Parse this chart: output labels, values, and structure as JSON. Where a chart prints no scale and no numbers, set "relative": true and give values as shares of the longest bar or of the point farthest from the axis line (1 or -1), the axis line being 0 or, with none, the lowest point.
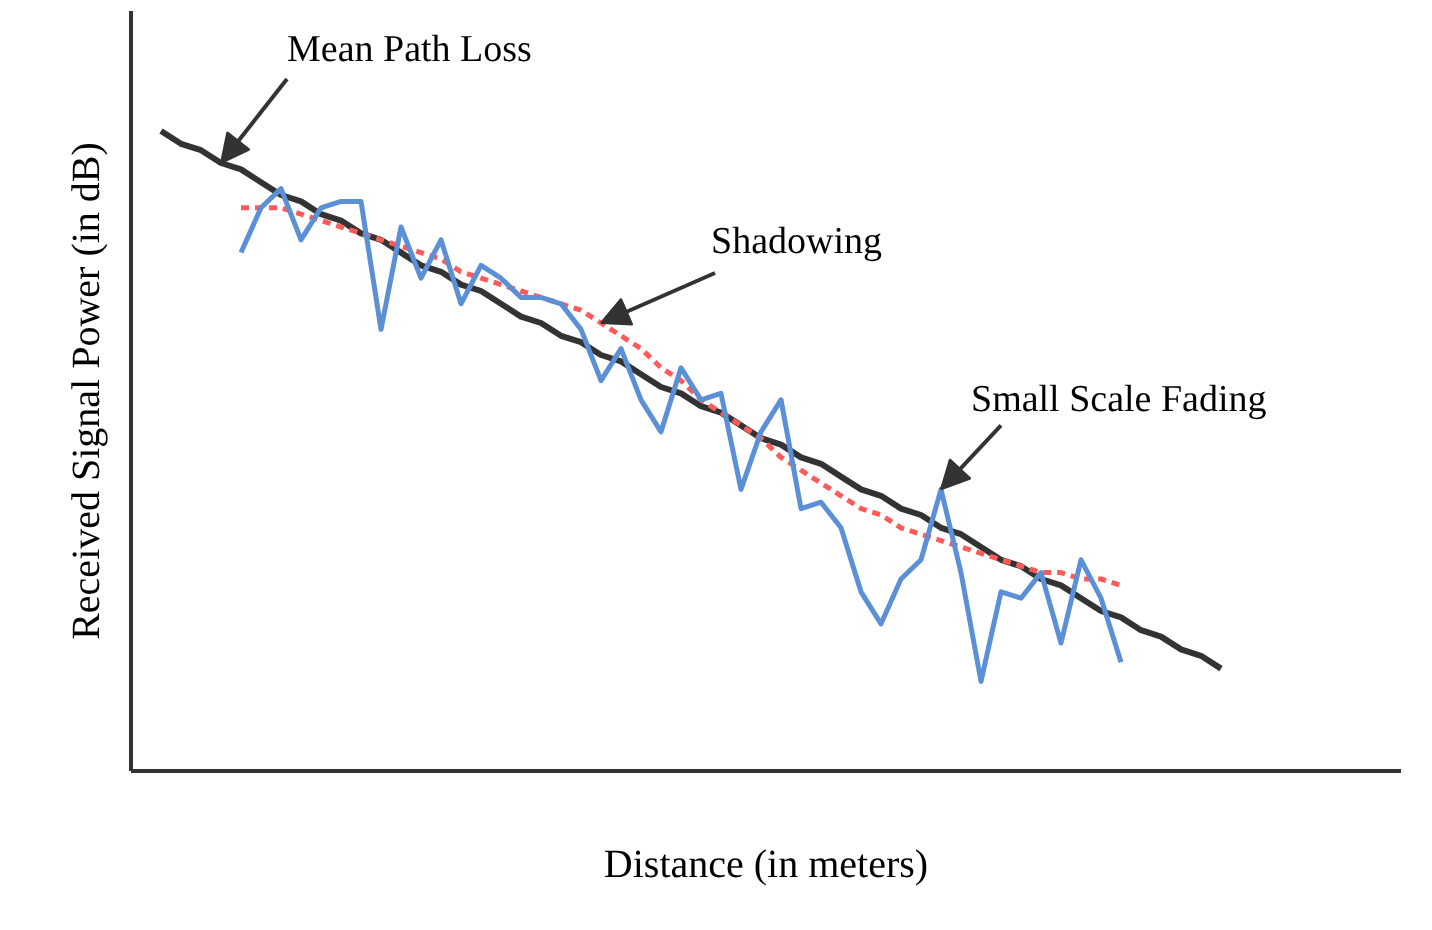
{
  "chart_data": {
    "type": "line",
    "relative": true,
    "xlabel": "Distance (in meters)",
    "ylabel": "Received Signal Power (in dB)",
    "categories": [
      null,
      null,
      null,
      null,
      null,
      null,
      null,
      null,
      null,
      null,
      null,
      null,
      null,
      null,
      null,
      null,
      null,
      null,
      null,
      null,
      null,
      null,
      null,
      null,
      null,
      null,
      null,
      null,
      null,
      null,
      null,
      null,
      null,
      null,
      null,
      null,
      null,
      null,
      null,
      null,
      null,
      null,
      null,
      null,
      null,
      null,
      null,
      null,
      null,
      null,
      null,
      null,
      null,
      null
    ],
    "series": [
      {
        "name": "Mean Path Loss",
        "color": "#333333",
        "line_style": "solid",
        "values": [
          1.0,
          0.98,
          0.97,
          0.95,
          0.94,
          0.92,
          0.9,
          0.89,
          0.87,
          0.86,
          0.84,
          0.83,
          0.81,
          0.79,
          0.78,
          0.76,
          0.75,
          0.73,
          0.71,
          0.7,
          0.68,
          0.67,
          0.65,
          0.64,
          0.62,
          0.6,
          0.59,
          0.57,
          0.56,
          0.54,
          0.52,
          0.51,
          0.49,
          0.48,
          0.46,
          0.44,
          0.43,
          0.41,
          0.4,
          0.38,
          0.37,
          0.35,
          0.33,
          0.32,
          0.3,
          0.29,
          0.27,
          0.25,
          0.24,
          0.22,
          0.21,
          0.19,
          0.18,
          0.16
        ]
      },
      {
        "name": "Shadowing",
        "color": "#ff5a5a",
        "line_style": "dashed",
        "values": [
          null,
          null,
          null,
          null,
          0.88,
          0.88,
          0.88,
          0.87,
          0.86,
          0.85,
          0.84,
          0.83,
          0.82,
          0.81,
          0.8,
          0.78,
          0.77,
          0.76,
          0.75,
          0.74,
          0.73,
          0.72,
          0.7,
          0.68,
          0.66,
          0.63,
          0.61,
          0.58,
          0.56,
          0.54,
          0.52,
          0.49,
          0.47,
          0.45,
          0.43,
          0.41,
          0.4,
          0.38,
          0.37,
          0.36,
          0.35,
          0.34,
          0.33,
          0.32,
          0.31,
          0.31,
          0.3,
          0.3,
          0.29,
          null,
          null,
          null,
          null,
          null
        ]
      },
      {
        "name": "Small Scale Fading",
        "color": "#5b8fd6",
        "line_style": "solid",
        "values": [
          null,
          null,
          null,
          null,
          0.81,
          0.88,
          0.91,
          0.83,
          0.88,
          0.89,
          0.89,
          0.69,
          0.85,
          0.77,
          0.83,
          0.73,
          0.79,
          0.77,
          0.74,
          0.74,
          0.73,
          0.69,
          0.61,
          0.66,
          0.58,
          0.53,
          0.63,
          0.58,
          0.59,
          0.44,
          0.53,
          0.58,
          0.41,
          0.42,
          0.38,
          0.28,
          0.23,
          0.3,
          0.33,
          0.44,
          0.31,
          0.14,
          0.28,
          0.27,
          0.31,
          0.2,
          0.33,
          0.27,
          0.17,
          null,
          null,
          null,
          null,
          null
        ]
      }
    ]
  }
}
